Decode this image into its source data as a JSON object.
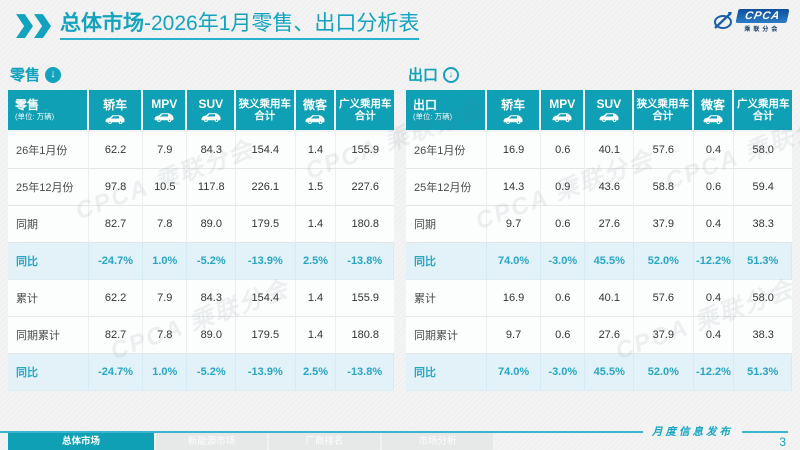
{
  "slide": {
    "title": {
      "bold": "总体市场",
      "rest": "-2026年1月零售、出口分析表"
    },
    "logo": {
      "name": "CPCA",
      "subtitle": "乘联分会"
    },
    "watermark_text": "CPCA 乘联分会"
  },
  "colors": {
    "accent_teal": "#0fa0b6",
    "highlight_row_bg": "#e2f2f8",
    "highlight_text": "#27a6c6",
    "logo_blue": "#0d4f9e"
  },
  "tables": [
    {
      "section_label": "零售",
      "arrow_icon": "down-arrow-filled-icon",
      "corner_label": "零售",
      "unit_label": "(单位: 万辆)",
      "columns": [
        {
          "label": "轿车",
          "label2": "",
          "icon": "sedan-icon"
        },
        {
          "label": "MPV",
          "label2": "",
          "icon": "mpv-icon"
        },
        {
          "label": "SUV",
          "label2": "",
          "icon": "suv-icon"
        },
        {
          "label": "狭义乘用车",
          "label2": "合计",
          "icon": ""
        },
        {
          "label": "微客",
          "label2": "",
          "icon": "microvan-icon"
        },
        {
          "label": "广义乘用车",
          "label2": "合计",
          "icon": ""
        }
      ],
      "rows": [
        {
          "label": "26年1月份",
          "highlight": false,
          "values": [
            "62.2",
            "7.9",
            "84.3",
            "154.4",
            "1.4",
            "155.9"
          ]
        },
        {
          "label": "25年12月份",
          "highlight": false,
          "values": [
            "97.8",
            "10.5",
            "117.8",
            "226.1",
            "1.5",
            "227.6"
          ]
        },
        {
          "label": "同期",
          "highlight": false,
          "values": [
            "82.7",
            "7.8",
            "89.0",
            "179.5",
            "1.4",
            "180.8"
          ]
        },
        {
          "label": "同比",
          "highlight": true,
          "values": [
            "-24.7%",
            "1.0%",
            "-5.2%",
            "-13.9%",
            "2.5%",
            "-13.8%"
          ]
        },
        {
          "label": "累计",
          "highlight": false,
          "values": [
            "62.2",
            "7.9",
            "84.3",
            "154.4",
            "1.4",
            "155.9"
          ]
        },
        {
          "label": "同期累计",
          "highlight": false,
          "values": [
            "82.7",
            "7.8",
            "89.0",
            "179.5",
            "1.4",
            "180.8"
          ]
        },
        {
          "label": "同比",
          "highlight": true,
          "values": [
            "-24.7%",
            "1.0%",
            "-5.2%",
            "-13.9%",
            "2.5%",
            "-13.8%"
          ]
        }
      ]
    },
    {
      "section_label": "出口",
      "arrow_icon": "down-arrow-outline-icon",
      "corner_label": "出口",
      "unit_label": "(单位: 万辆)",
      "columns": [
        {
          "label": "轿车",
          "label2": "",
          "icon": "sedan-icon"
        },
        {
          "label": "MPV",
          "label2": "",
          "icon": "mpv-icon"
        },
        {
          "label": "SUV",
          "label2": "",
          "icon": "suv-icon"
        },
        {
          "label": "狭义乘用车",
          "label2": "合计",
          "icon": ""
        },
        {
          "label": "微客",
          "label2": "",
          "icon": "microvan-icon"
        },
        {
          "label": "广义乘用车",
          "label2": "合计",
          "icon": ""
        }
      ],
      "rows": [
        {
          "label": "26年1月份",
          "highlight": false,
          "values": [
            "16.9",
            "0.6",
            "40.1",
            "57.6",
            "0.4",
            "58.0"
          ]
        },
        {
          "label": "25年12月份",
          "highlight": false,
          "values": [
            "14.3",
            "0.9",
            "43.6",
            "58.8",
            "0.6",
            "59.4"
          ]
        },
        {
          "label": "同期",
          "highlight": false,
          "values": [
            "9.7",
            "0.6",
            "27.6",
            "37.9",
            "0.4",
            "38.3"
          ]
        },
        {
          "label": "同比",
          "highlight": true,
          "values": [
            "74.0%",
            "-3.0%",
            "45.5%",
            "52.0%",
            "-12.2%",
            "51.3%"
          ]
        },
        {
          "label": "累计",
          "highlight": false,
          "values": [
            "16.9",
            "0.6",
            "40.1",
            "57.6",
            "0.4",
            "58.0"
          ]
        },
        {
          "label": "同期累计",
          "highlight": false,
          "values": [
            "9.7",
            "0.6",
            "27.6",
            "37.9",
            "0.4",
            "38.3"
          ]
        },
        {
          "label": "同比",
          "highlight": true,
          "values": [
            "74.0%",
            "-3.0%",
            "45.5%",
            "52.0%",
            "-12.2%",
            "51.3%"
          ]
        }
      ]
    }
  ],
  "footer": {
    "publish_label": "月度信息发布",
    "page_number": "3",
    "tabs": [
      {
        "label": "总体市场",
        "active": true
      },
      {
        "label": "新能源市场",
        "active": false
      },
      {
        "label": "厂商排名",
        "active": false
      },
      {
        "label": "市场分析",
        "active": false
      }
    ]
  }
}
